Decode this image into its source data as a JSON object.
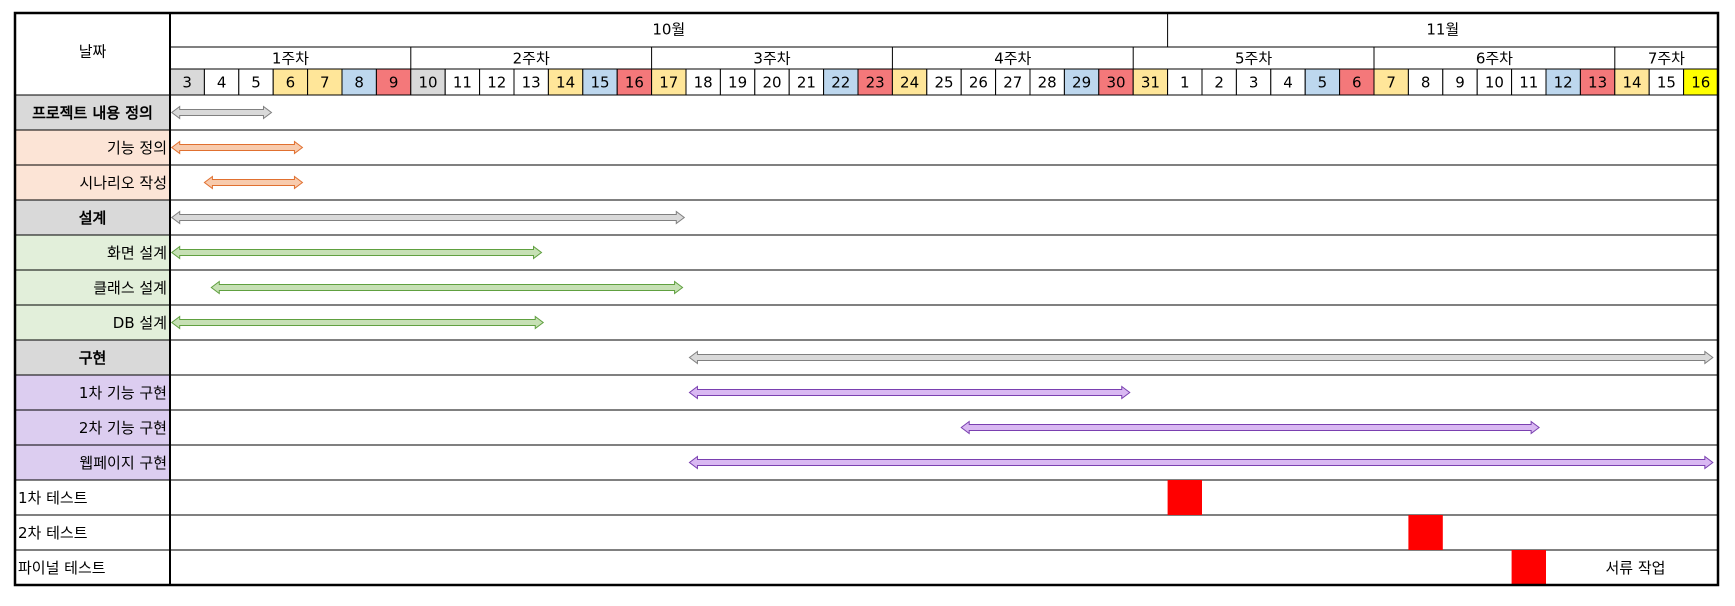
{
  "header": {
    "corner": "날짜",
    "months": [
      "10월",
      "11월"
    ],
    "weeks": [
      "1주차",
      "2주차",
      "3주차",
      "4주차",
      "5주차",
      "6주차",
      "7주차"
    ],
    "days": [
      {
        "label": "3",
        "color": "#d9d9d9"
      },
      {
        "label": "4",
        "color": "#ffffff"
      },
      {
        "label": "5",
        "color": "#ffffff"
      },
      {
        "label": "6",
        "color": "#ffe699"
      },
      {
        "label": "7",
        "color": "#ffe699"
      },
      {
        "label": "8",
        "color": "#bdd7ee"
      },
      {
        "label": "9",
        "color": "#f4787a"
      },
      {
        "label": "10",
        "color": "#d9d9d9"
      },
      {
        "label": "11",
        "color": "#ffffff"
      },
      {
        "label": "12",
        "color": "#ffffff"
      },
      {
        "label": "13",
        "color": "#ffffff"
      },
      {
        "label": "14",
        "color": "#ffe699"
      },
      {
        "label": "15",
        "color": "#bdd7ee"
      },
      {
        "label": "16",
        "color": "#f4787a"
      },
      {
        "label": "17",
        "color": "#ffe699"
      },
      {
        "label": "18",
        "color": "#ffffff"
      },
      {
        "label": "19",
        "color": "#ffffff"
      },
      {
        "label": "20",
        "color": "#ffffff"
      },
      {
        "label": "21",
        "color": "#ffffff"
      },
      {
        "label": "22",
        "color": "#bdd7ee"
      },
      {
        "label": "23",
        "color": "#f4787a"
      },
      {
        "label": "24",
        "color": "#ffe699"
      },
      {
        "label": "25",
        "color": "#ffffff"
      },
      {
        "label": "26",
        "color": "#ffffff"
      },
      {
        "label": "27",
        "color": "#ffffff"
      },
      {
        "label": "28",
        "color": "#ffffff"
      },
      {
        "label": "29",
        "color": "#bdd7ee"
      },
      {
        "label": "30",
        "color": "#f4787a"
      },
      {
        "label": "31",
        "color": "#ffe699"
      },
      {
        "label": "1",
        "color": "#ffffff"
      },
      {
        "label": "2",
        "color": "#ffffff"
      },
      {
        "label": "3",
        "color": "#ffffff"
      },
      {
        "label": "4",
        "color": "#ffffff"
      },
      {
        "label": "5",
        "color": "#bdd7ee"
      },
      {
        "label": "6",
        "color": "#f4787a"
      },
      {
        "label": "7",
        "color": "#ffe699"
      },
      {
        "label": "8",
        "color": "#ffffff"
      },
      {
        "label": "9",
        "color": "#ffffff"
      },
      {
        "label": "10",
        "color": "#ffffff"
      },
      {
        "label": "11",
        "color": "#ffffff"
      },
      {
        "label": "12",
        "color": "#bdd7ee"
      },
      {
        "label": "13",
        "color": "#f4787a"
      },
      {
        "label": "14",
        "color": "#ffe699"
      },
      {
        "label": "15",
        "color": "#ffffff"
      },
      {
        "label": "16",
        "color": "#ffff00"
      }
    ]
  },
  "rows": [
    {
      "label": "프로젝트 내용 정의",
      "color": "#d9d9d9",
      "bold": true
    },
    {
      "label": "기능 정의",
      "color": "#fce4d6",
      "bold": false
    },
    {
      "label": "시나리오 작성",
      "color": "#fce4d6",
      "bold": false
    },
    {
      "label": "설계",
      "color": "#d9d9d9",
      "bold": true
    },
    {
      "label": "화면 설계",
      "color": "#e2efda",
      "bold": false
    },
    {
      "label": "클래스 설계",
      "color": "#e2efda",
      "bold": false
    },
    {
      "label": "DB 설계",
      "color": "#e2efda",
      "bold": false
    },
    {
      "label": "구현",
      "color": "#d9d9d9",
      "bold": true
    },
    {
      "label": "1차 기능 구현",
      "color": "#dccdf0",
      "bold": false
    },
    {
      "label": "2차 기능 구현",
      "color": "#dccdf0",
      "bold": false
    },
    {
      "label": "웹페이지 구현",
      "color": "#dccdf0",
      "bold": false
    },
    {
      "label": "1차 테스트",
      "color": "#ffffff",
      "bold": false
    },
    {
      "label": "2차 테스트",
      "color": "#ffffff",
      "bold": false
    },
    {
      "label": "파이널 테스트",
      "color": "#ffffff",
      "bold": false,
      "note": "서류 작업"
    }
  ]
}
